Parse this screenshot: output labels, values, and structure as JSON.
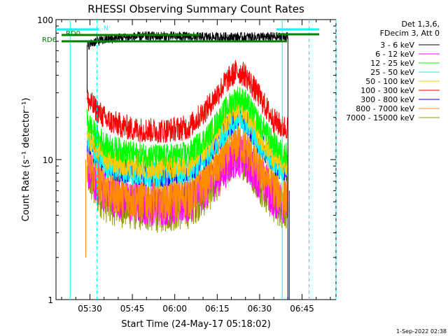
{
  "chart_data": {
    "type": "line",
    "title": "RHESSI Observing Summary Count Rates",
    "xlabel": "Start Time (24-May-17 05:18:02)",
    "ylabel": "Count Rate (s⁻¹ detector⁻¹)",
    "y_scale": "log",
    "ylim": [
      1,
      100
    ],
    "xlim": [
      "05:18",
      "06:57"
    ],
    "y_ticks": [
      {
        "value": 1,
        "label": "1"
      },
      {
        "value": 10,
        "label": "10"
      },
      {
        "value": 100,
        "label": "100"
      }
    ],
    "x_ticks": [
      {
        "value": "05:30",
        "label": "05:30"
      },
      {
        "value": "05:45",
        "label": "05:45"
      },
      {
        "value": "06:00",
        "label": "06:00"
      },
      {
        "value": "06:15",
        "label": "06:15"
      },
      {
        "value": "06:30",
        "label": "06:30"
      },
      {
        "value": "06:45",
        "label": "06:45"
      }
    ],
    "legend": {
      "placement": "right",
      "header": [
        "Det 1,3,6,",
        "FDecim 3, Att 0"
      ]
    },
    "series": [
      {
        "name": "3 - 6 keV",
        "color": "#000000",
        "points": [
          [
            "05:29",
            65
          ],
          [
            "05:32",
            70
          ],
          [
            "05:40",
            74
          ],
          [
            "05:50",
            76
          ],
          [
            "06:00",
            76
          ],
          [
            "06:10",
            75
          ],
          [
            "06:20",
            75
          ],
          [
            "06:30",
            75
          ],
          [
            "06:38",
            75
          ],
          [
            "06:40",
            75
          ]
        ]
      },
      {
        "name": "6 - 12 keV",
        "color": "#ff00ff",
        "points": [
          [
            "05:29",
            9
          ],
          [
            "05:32",
            7
          ],
          [
            "05:36",
            5.8
          ],
          [
            "05:45",
            5
          ],
          [
            "05:55",
            4.8
          ],
          [
            "06:05",
            5
          ],
          [
            "06:12",
            6.5
          ],
          [
            "06:18",
            9
          ],
          [
            "06:22",
            11
          ],
          [
            "06:25",
            10
          ],
          [
            "06:30",
            7.5
          ],
          [
            "06:35",
            5.5
          ],
          [
            "06:38",
            5
          ],
          [
            "06:40",
            5
          ]
        ]
      },
      {
        "name": "12 - 25 keV",
        "color": "#00ff00",
        "points": [
          [
            "05:29",
            19
          ],
          [
            "05:32",
            15
          ],
          [
            "05:36",
            12.5
          ],
          [
            "05:45",
            11
          ],
          [
            "05:55",
            10.5
          ],
          [
            "06:05",
            11
          ],
          [
            "06:12",
            15
          ],
          [
            "06:18",
            23
          ],
          [
            "06:22",
            28
          ],
          [
            "06:25",
            26
          ],
          [
            "06:30",
            18
          ],
          [
            "06:35",
            13
          ],
          [
            "06:38",
            11
          ],
          [
            "06:40",
            11
          ]
        ]
      },
      {
        "name": "25 - 50 keV",
        "color": "#00ffff",
        "points": [
          [
            "05:29",
            13.5
          ],
          [
            "05:32",
            11
          ],
          [
            "05:36",
            9
          ],
          [
            "05:45",
            8
          ],
          [
            "05:55",
            7.8
          ],
          [
            "06:05",
            8.3
          ],
          [
            "06:12",
            11
          ],
          [
            "06:18",
            16
          ],
          [
            "06:22",
            20
          ],
          [
            "06:25",
            19
          ],
          [
            "06:30",
            13
          ],
          [
            "06:35",
            9.5
          ],
          [
            "06:38",
            8.5
          ],
          [
            "06:40",
            8.5
          ]
        ]
      },
      {
        "name": "50 - 100 keV",
        "color": "#ffcc00",
        "points": [
          [
            "05:29",
            15
          ],
          [
            "05:32",
            12.5
          ],
          [
            "05:36",
            10
          ],
          [
            "05:45",
            9
          ],
          [
            "05:55",
            8.8
          ],
          [
            "06:05",
            9.3
          ],
          [
            "06:12",
            13
          ],
          [
            "06:18",
            19
          ],
          [
            "06:22",
            24
          ],
          [
            "06:25",
            22
          ],
          [
            "06:30",
            15
          ],
          [
            "06:35",
            10.5
          ],
          [
            "06:38",
            9.5
          ],
          [
            "06:40",
            9.5
          ]
        ]
      },
      {
        "name": "100 - 300 keV",
        "color": "#ff0000",
        "points": [
          [
            "05:29",
            27
          ],
          [
            "05:32",
            23
          ],
          [
            "05:36",
            19
          ],
          [
            "05:45",
            16.5
          ],
          [
            "05:55",
            16
          ],
          [
            "06:05",
            17
          ],
          [
            "06:12",
            24
          ],
          [
            "06:18",
            36
          ],
          [
            "06:22",
            43
          ],
          [
            "06:25",
            40
          ],
          [
            "06:30",
            28
          ],
          [
            "06:35",
            19
          ],
          [
            "06:38",
            17
          ],
          [
            "06:40",
            17
          ]
        ]
      },
      {
        "name": "300 - 800 keV",
        "color": "#0000ff",
        "points": [
          [
            "05:29",
            14
          ],
          [
            "05:32",
            11
          ],
          [
            "05:36",
            9
          ],
          [
            "05:45",
            8
          ],
          [
            "05:55",
            7.8
          ],
          [
            "06:05",
            8.2
          ],
          [
            "06:12",
            11
          ],
          [
            "06:18",
            16.5
          ],
          [
            "06:22",
            20
          ],
          [
            "06:25",
            19
          ],
          [
            "06:30",
            13
          ],
          [
            "06:35",
            9.5
          ],
          [
            "06:38",
            8.5
          ],
          [
            "06:40",
            8.5
          ]
        ]
      },
      {
        "name": "800 - 7000 keV",
        "color": "#ff8c00",
        "points": [
          [
            "05:29",
            10
          ],
          [
            "05:32",
            7.5
          ],
          [
            "05:36",
            6.2
          ],
          [
            "05:45",
            5.3
          ],
          [
            "05:55",
            5.2
          ],
          [
            "06:05",
            5.5
          ],
          [
            "06:12",
            7.5
          ],
          [
            "06:18",
            11
          ],
          [
            "06:22",
            13.5
          ],
          [
            "06:25",
            12.5
          ],
          [
            "06:30",
            8.5
          ],
          [
            "06:35",
            6.5
          ],
          [
            "06:38",
            5.5
          ],
          [
            "06:40",
            5.5
          ]
        ]
      },
      {
        "name": "7000 - 15000 keV",
        "color": "#999900",
        "points": [
          [
            "05:29",
            8
          ],
          [
            "05:32",
            6
          ],
          [
            "05:36",
            5
          ],
          [
            "05:45",
            4.5
          ],
          [
            "05:55",
            4.3
          ],
          [
            "06:05",
            4.6
          ],
          [
            "06:12",
            6
          ],
          [
            "06:18",
            9
          ],
          [
            "06:22",
            11
          ],
          [
            "06:25",
            10
          ],
          [
            "06:30",
            7
          ],
          [
            "06:35",
            5
          ],
          [
            "06:38",
            4.6
          ],
          [
            "06:40",
            4.6
          ]
        ]
      }
    ],
    "annotations": [
      {
        "label": "N",
        "color": "#00ffff"
      },
      {
        "label": "RD0",
        "color": "#008000"
      },
      {
        "label": "RD6",
        "color": "#008000"
      }
    ]
  },
  "footer": {
    "timestamp": "1-Sep-2022 02:38"
  }
}
